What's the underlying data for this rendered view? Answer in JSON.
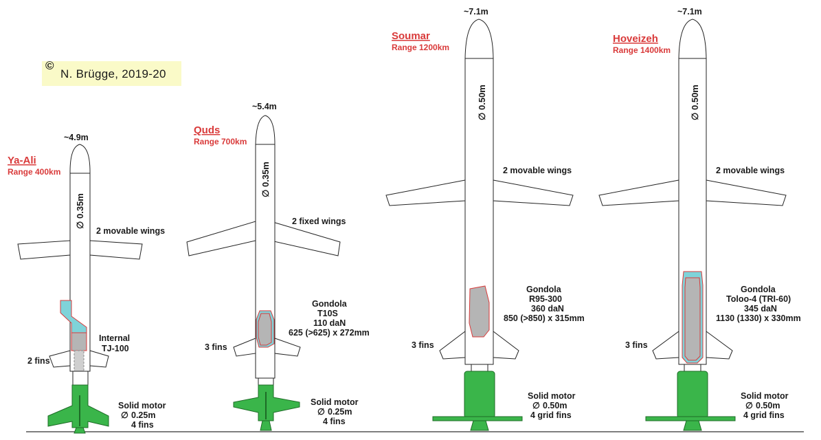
{
  "credit": {
    "symbol": "©",
    "text": "N. Brügge, 2019-20"
  },
  "colors": {
    "name": "#d93a3a",
    "motor": "#3ab54a",
    "gondola": "#b5b5b5",
    "accent": "#7fd3d9"
  },
  "missiles": [
    {
      "name": "Ya-Ali",
      "range": "Range 400km",
      "length": "~4.9m",
      "diameter": "0.35m",
      "wings": "2 movable wings",
      "engine": [
        "Internal",
        "TJ-100"
      ],
      "fins": "2 fins",
      "motor": [
        "Solid motor",
        "0.25m",
        "4 fins"
      ]
    },
    {
      "name": "Quds",
      "range": "Range 700km",
      "length": "~5.4m",
      "diameter": "0.35m",
      "wings": "2 fixed wings",
      "gondola": [
        "Gondola",
        "T10S",
        "110 daN",
        "625 (>625) x 272mm"
      ],
      "fins": "3 fins",
      "motor": [
        "Solid motor",
        "0.25m",
        "4 fins"
      ]
    },
    {
      "name": "Soumar",
      "range": "Range 1200km",
      "length": "~7.1m",
      "diameter": "0.50m",
      "wings": "2 movable wings",
      "gondola": [
        "Gondola",
        "R95-300",
        "360 daN",
        "850 (>850)  x 315mm"
      ],
      "fins": "3 fins",
      "motor": [
        "Solid motor",
        "0.50m",
        "4 grid fins"
      ]
    },
    {
      "name": "Hoveizeh",
      "range": "Range 1400km",
      "length": "~7.1m",
      "diameter": "0.50m",
      "wings": "2 movable wings",
      "gondola": [
        "Gondola",
        "Toloo-4 (TRI-60)",
        "345 daN",
        "1130 (1330) x 330mm"
      ],
      "fins": "3 fins",
      "motor": [
        "Solid motor",
        "0.50m",
        "4 grid fins"
      ]
    }
  ]
}
